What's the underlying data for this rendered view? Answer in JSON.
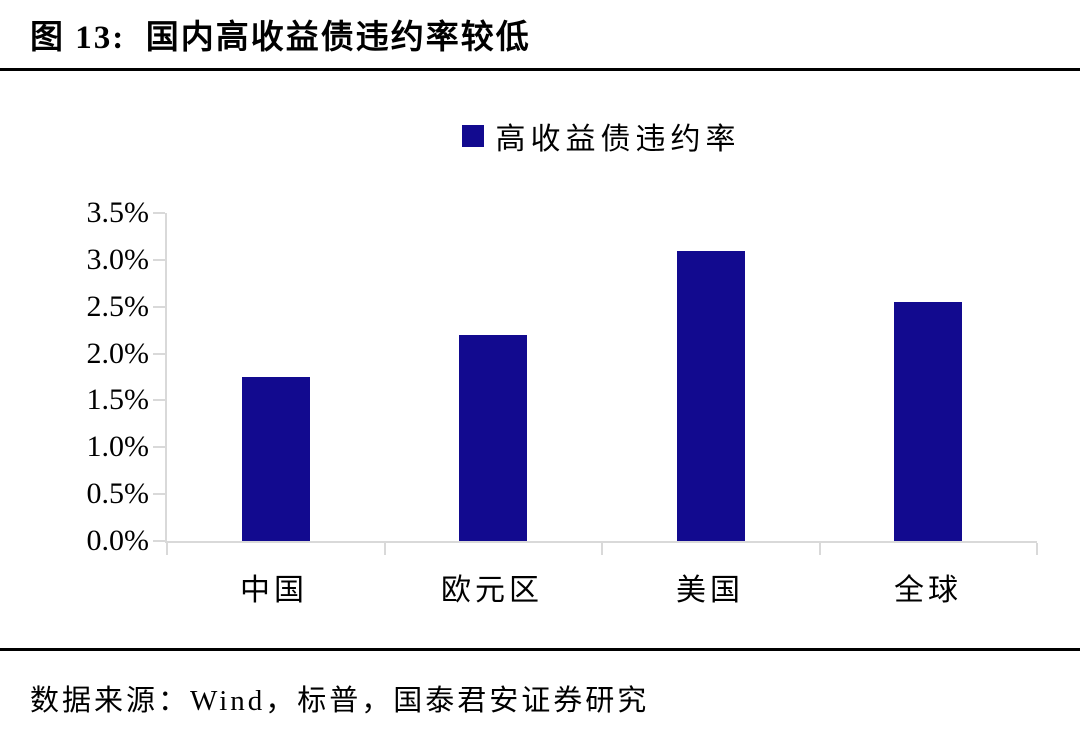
{
  "figure": {
    "title": "图 13:  国内高收益债违约率较低",
    "source": "数据来源：Wind，标普，国泰君安证券研究"
  },
  "legend": {
    "label": "高收益债违约率",
    "swatch_color": "#120A8F"
  },
  "chart_data": {
    "type": "bar",
    "title": "国内高收益债违约率较低",
    "categories": [
      "中国",
      "欧元区",
      "美国",
      "全球"
    ],
    "series": [
      {
        "name": "高收益债违约率",
        "values": [
          1.75,
          2.2,
          3.1,
          2.55
        ]
      }
    ],
    "unit": "%",
    "xlabel": "",
    "ylabel": "",
    "ylim": [
      0,
      3.5
    ],
    "ytick_step": 0.5,
    "ytick_labels": [
      "0.0%",
      "0.5%",
      "1.0%",
      "1.5%",
      "2.0%",
      "2.5%",
      "3.0%",
      "3.5%"
    ],
    "grid": false,
    "legend_position": "top-center",
    "bar_color": "#120A8F",
    "axis_color": "#D9D9D9"
  }
}
